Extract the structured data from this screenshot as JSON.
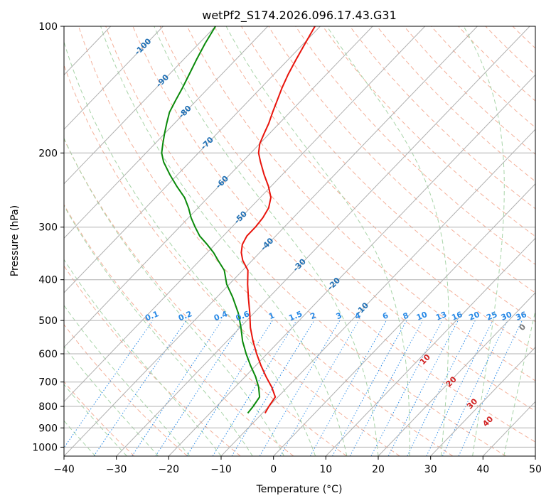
{
  "chart_data": {
    "type": "line",
    "subtype": "skew-t log-p diagram",
    "title": "wetPf2_S174.2026.096.17.43.G31",
    "xlabel": "Temperature (°C)",
    "ylabel": "Pressure (hPa)",
    "xlim": [
      -40,
      50
    ],
    "ylim": [
      1050,
      100
    ],
    "x_ticks": [
      -40,
      -30,
      -20,
      -10,
      0,
      10,
      20,
      30,
      40,
      50
    ],
    "x_tick_labels": [
      "−40",
      "−30",
      "−20",
      "−10",
      "0",
      "10",
      "20",
      "30",
      "40",
      "50"
    ],
    "y_ticks": [
      100,
      200,
      300,
      400,
      500,
      600,
      700,
      800,
      900,
      1000
    ],
    "y_tick_labels": [
      "100",
      "200",
      "300",
      "400",
      "500",
      "600",
      "700",
      "800",
      "900",
      "1000"
    ],
    "colors": {
      "temperature": "#e8140c",
      "dewpoint": "#0a8a0a",
      "isotherm": "#b0b0b0",
      "dry_adiabat": "#f4b09a",
      "moist_adiabat": "#a8d4a8",
      "mixing_ratio": "#2a8ae6",
      "isotherm_label": "#1f6fb4",
      "moist_label": "#d02020",
      "zero_label": "#777777",
      "mixing_label": "#2a8ae6"
    },
    "series": [
      {
        "name": "Temperature",
        "pressure": [
          830,
          800,
          760,
          720,
          680,
          640,
          600,
          560,
          520,
          480,
          440,
          410,
          380,
          360,
          345,
          330,
          315,
          300,
          285,
          270,
          255,
          240,
          225,
          210,
          200,
          190,
          180,
          170,
          160,
          150,
          140,
          130,
          120,
          110,
          100
        ],
        "temperature": [
          -9.5,
          -10.0,
          -10.5,
          -13.0,
          -16.0,
          -19.0,
          -22.0,
          -25.0,
          -28.0,
          -30.8,
          -34.0,
          -36.5,
          -39.0,
          -41.8,
          -43.5,
          -44.8,
          -45.5,
          -45.5,
          -45.8,
          -46.5,
          -48.0,
          -50.5,
          -53.5,
          -56.5,
          -58.5,
          -60.0,
          -61.0,
          -62.0,
          -63.3,
          -64.6,
          -66.0,
          -67.3,
          -68.5,
          -69.7,
          -71.0
        ]
      },
      {
        "name": "Dewpoint",
        "pressure": [
          830,
          800,
          760,
          720,
          680,
          640,
          600,
          560,
          520,
          480,
          440,
          410,
          380,
          360,
          345,
          330,
          315,
          300,
          285,
          270,
          255,
          240,
          225,
          210,
          200,
          190,
          180,
          170,
          160,
          150,
          140,
          130,
          120,
          110,
          100
        ],
        "temperature": [
          -12.8,
          -13.0,
          -13.5,
          -15.5,
          -18.0,
          -21.0,
          -24.0,
          -27.0,
          -29.8,
          -33.0,
          -37.0,
          -40.5,
          -43.5,
          -46.5,
          -48.8,
          -51.5,
          -54.5,
          -57.0,
          -59.5,
          -61.8,
          -64.5,
          -68.0,
          -71.5,
          -75.0,
          -77.0,
          -78.5,
          -80.0,
          -81.5,
          -83.0,
          -84.0,
          -85.0,
          -86.2,
          -87.5,
          -88.8,
          -90.0
        ]
      }
    ],
    "isotherm_labels": [
      "-100",
      "-90",
      "-80",
      "-70",
      "-60",
      "-50",
      "-40",
      "-30",
      "-20",
      "-10"
    ],
    "zero_label": "0",
    "moist_adiabat_labels": [
      "10",
      "20",
      "30",
      "40"
    ],
    "mixing_ratio_labels": [
      "0.1",
      "0.2",
      "0.4",
      "0.6",
      "1",
      "1.5",
      "2",
      "3",
      "4",
      "6",
      "8",
      "10",
      "13",
      "16",
      "20",
      "25",
      "30",
      "36"
    ]
  }
}
